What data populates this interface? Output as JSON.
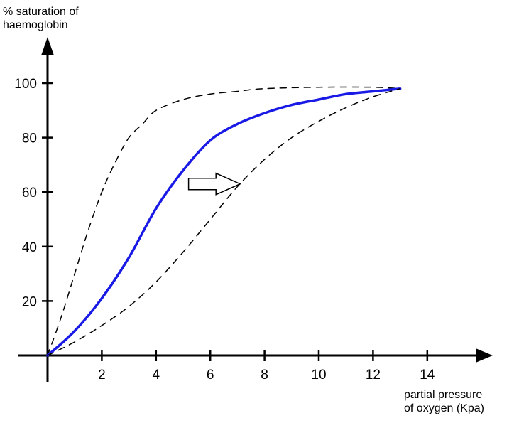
{
  "chart_data": {
    "type": "line",
    "ylabel_lines": [
      "% saturation of",
      "haemoglobin"
    ],
    "xlabel_lines": [
      "partial pressure",
      "of oxygen (Kpa)"
    ],
    "xlim": [
      0,
      14
    ],
    "ylim": [
      0,
      100
    ],
    "x_ticks": [
      2,
      4,
      6,
      8,
      10,
      12,
      14
    ],
    "y_ticks": [
      20,
      40,
      60,
      80,
      100
    ],
    "grid": false,
    "legend": "none",
    "series": [
      {
        "style": "dashed",
        "color": "#000000",
        "x": [
          0,
          0.5,
          1,
          1.5,
          2,
          2.5,
          3,
          3.5,
          4,
          5,
          6,
          7,
          8,
          10,
          12,
          13
        ],
        "y": [
          0,
          14,
          30,
          46,
          60,
          71,
          80,
          85,
          90,
          94,
          96,
          97,
          98,
          98.5,
          98.5,
          98
        ]
      },
      {
        "style": "solid",
        "color": "#1a1ae6",
        "x": [
          0,
          1,
          2,
          3,
          4,
          5,
          6,
          7,
          8,
          9,
          10,
          11,
          12,
          13
        ],
        "y": [
          0,
          9,
          21,
          36,
          54,
          68,
          79,
          85,
          89,
          92,
          94,
          96,
          97,
          98
        ]
      },
      {
        "style": "dashed",
        "color": "#000000",
        "x": [
          0,
          1,
          2,
          3,
          4,
          5,
          6,
          7,
          8,
          9,
          10,
          11,
          12,
          13
        ],
        "y": [
          0,
          5,
          11,
          18,
          27,
          38,
          50,
          62,
          72,
          80,
          86,
          91,
          95,
          98
        ]
      }
    ],
    "annotation": {
      "type": "arrow",
      "direction": "right",
      "from": [
        5.2,
        63
      ],
      "to": [
        7.1,
        63
      ]
    }
  }
}
